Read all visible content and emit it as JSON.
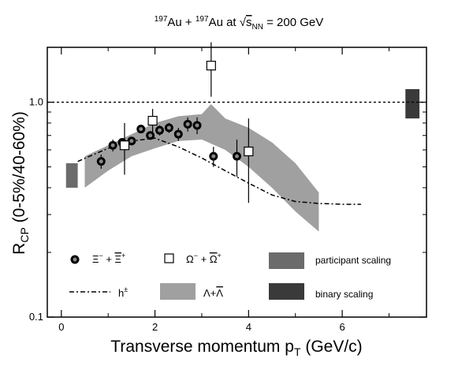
{
  "chart_data": {
    "type": "scatter",
    "title": {
      "pre1": "197",
      "t1": "Au + ",
      "pre2": "197",
      "t2": "Au at ",
      "sqrt": "√",
      "s": "s",
      "sub": "NN",
      "t3": " = 200 GeV"
    },
    "xlabel": "Transverse momentum p",
    "xlabel_sub": "T",
    "xlabel_unit": " (GeV/c)",
    "ylabel": "R",
    "ylabel_sub": "CP",
    "ylabel_rest": " (0-5%/40-60%)",
    "xlim": [
      -0.3,
      7.8
    ],
    "ylim": [
      0.1,
      1.8
    ],
    "yscale": "log",
    "x_ticks": [
      "0",
      "2",
      "4",
      "6"
    ],
    "y_ticks": [
      "0.1",
      "1.0"
    ],
    "reference_line": 1.0,
    "series": [
      {
        "key": "xi",
        "legend": {
          "base": "Ξ",
          "sup1": "−",
          "plus": " + ",
          "bar": "Ξ",
          "sup2": "+"
        },
        "marker": "filled-circle",
        "points": [
          {
            "x": 0.85,
            "y": 0.53,
            "err": 0.04
          },
          {
            "x": 1.1,
            "y": 0.63,
            "err": 0.04
          },
          {
            "x": 1.3,
            "y": 0.65,
            "err": 0.03
          },
          {
            "x": 1.5,
            "y": 0.66,
            "err": 0.03
          },
          {
            "x": 1.7,
            "y": 0.75,
            "err": 0.03
          },
          {
            "x": 1.9,
            "y": 0.7,
            "err": 0.03
          },
          {
            "x": 2.1,
            "y": 0.74,
            "err": 0.04
          },
          {
            "x": 2.3,
            "y": 0.76,
            "err": 0.04
          },
          {
            "x": 2.5,
            "y": 0.71,
            "err": 0.05
          },
          {
            "x": 2.7,
            "y": 0.79,
            "err": 0.06
          },
          {
            "x": 2.9,
            "y": 0.78,
            "err": 0.07
          },
          {
            "x": 3.25,
            "y": 0.56,
            "err": 0.06
          },
          {
            "x": 3.75,
            "y": 0.56,
            "err": 0.11
          }
        ]
      },
      {
        "key": "omega",
        "legend": {
          "base": "Ω",
          "sup1": "−",
          "plus": " + ",
          "bar": "Ω",
          "sup2": "+"
        },
        "marker": "open-square",
        "points": [
          {
            "x": 1.35,
            "y": 0.63,
            "err": 0.17
          },
          {
            "x": 1.95,
            "y": 0.82,
            "err": 0.11
          },
          {
            "x": 3.2,
            "y": 1.48,
            "err": 0.42
          },
          {
            "x": 4.0,
            "y": 0.59,
            "err": 0.25
          }
        ]
      }
    ],
    "hpm_curve": {
      "legend": "h",
      "legend_sup": "±",
      "points": [
        {
          "x": 0.35,
          "y": 0.53
        },
        {
          "x": 0.6,
          "y": 0.56
        },
        {
          "x": 1.0,
          "y": 0.61
        },
        {
          "x": 1.5,
          "y": 0.66
        },
        {
          "x": 2.0,
          "y": 0.68
        },
        {
          "x": 2.5,
          "y": 0.62
        },
        {
          "x": 3.0,
          "y": 0.55
        },
        {
          "x": 3.5,
          "y": 0.48
        },
        {
          "x": 4.0,
          "y": 0.42
        },
        {
          "x": 4.5,
          "y": 0.37
        },
        {
          "x": 5.0,
          "y": 0.345
        },
        {
          "x": 5.5,
          "y": 0.338
        },
        {
          "x": 6.0,
          "y": 0.335
        },
        {
          "x": 6.4,
          "y": 0.335
        }
      ]
    },
    "lambda_band": {
      "legend": "Λ+",
      "legend_bar": "Λ",
      "color": "#a0a0a0",
      "upper": [
        {
          "x": 0.5,
          "y": 0.56
        },
        {
          "x": 1.0,
          "y": 0.63
        },
        {
          "x": 1.5,
          "y": 0.71
        },
        {
          "x": 2.0,
          "y": 0.8
        },
        {
          "x": 2.5,
          "y": 0.86
        },
        {
          "x": 3.0,
          "y": 0.88
        },
        {
          "x": 3.2,
          "y": 0.98
        },
        {
          "x": 3.5,
          "y": 0.84
        },
        {
          "x": 4.0,
          "y": 0.76
        },
        {
          "x": 4.5,
          "y": 0.65
        },
        {
          "x": 5.0,
          "y": 0.52
        },
        {
          "x": 5.5,
          "y": 0.38
        }
      ],
      "lower": [
        {
          "x": 0.5,
          "y": 0.4
        },
        {
          "x": 1.0,
          "y": 0.48
        },
        {
          "x": 1.5,
          "y": 0.56
        },
        {
          "x": 2.0,
          "y": 0.61
        },
        {
          "x": 2.5,
          "y": 0.66
        },
        {
          "x": 3.0,
          "y": 0.67
        },
        {
          "x": 3.5,
          "y": 0.6
        },
        {
          "x": 4.0,
          "y": 0.5
        },
        {
          "x": 4.5,
          "y": 0.4
        },
        {
          "x": 5.0,
          "y": 0.31
        },
        {
          "x": 5.5,
          "y": 0.25
        }
      ]
    },
    "scaling_bands": [
      {
        "key": "participant",
        "label": "participant scaling",
        "x": [
          0.1,
          0.35
        ],
        "y": [
          0.4,
          0.52
        ],
        "color": "#6b6b6b"
      },
      {
        "key": "binary",
        "label": "binary scaling",
        "x": [
          7.35,
          7.65
        ],
        "y": [
          0.84,
          1.15
        ],
        "color": "#3a3a3a"
      }
    ]
  }
}
